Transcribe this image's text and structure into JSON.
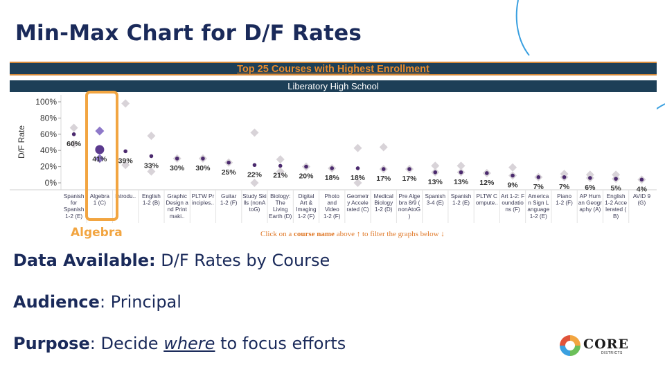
{
  "slide": {
    "title": "Min-Max Chart for D/F Rates",
    "highlight_label": "Algebra",
    "info": [
      {
        "label": "Data Available:",
        "text": " D/F Rates by Course",
        "underline": ""
      },
      {
        "label": "Audience",
        "text": ": Principal",
        "underline": ""
      },
      {
        "label": "Purpose",
        "text": ": Decide ",
        "underline": "where",
        "text_after": " to focus efforts"
      }
    ],
    "logo": {
      "name": "CORE",
      "sub": "DISTRICTS"
    }
  },
  "dashboard": {
    "banner_title": "Top 25 Courses with Highest Enrollment",
    "school": "Liberatory High School",
    "hint_prefix": "Click on a ",
    "hint_bold": "course name",
    "hint_suffix": " above ↑ to filter the graphs below ↓"
  },
  "colors": {
    "title": "#1a2a5a",
    "banner_bg": "#1d3f57",
    "banner_title": "#e88a2a",
    "highlight": "#f2a541",
    "dot": "#4b2a6e",
    "diamond_gray": "#d8d3d8",
    "diamond_purple": "#8e79c9"
  },
  "chart_data": {
    "type": "scatter",
    "ylabel": "D/F Rate",
    "yticks": [
      "0%",
      "20%",
      "40%",
      "60%",
      "80%",
      "100%"
    ],
    "ylim": [
      0,
      100
    ],
    "categories": [
      "Spanish for Spanish 1-2 (E)",
      "Algebra 1 (C)",
      "Introdu..",
      "English 1-2 (B)",
      "Graphic Design and Print maki..",
      "PLTW Principles..",
      "Guitar 1-2 (F)",
      "Study Skills (nonAtoG)",
      "Biology: The Living Earth (D)",
      "Digital Art & Imaging 1-2 (F)",
      "Photo and Video 1-2 (F)",
      "Geometry Accelerated (C)",
      "Medical Biology 1-2 (D)",
      "Pre Algebra 8/9 (nonAtoG)",
      "Spanish 3-4 (E)",
      "Spanish 1-2 (E)",
      "PLTW Compute..",
      "Art 1-2: Foundations (F)",
      "American Sign Language 1-2 (E)",
      "Piano 1-2 (F)",
      "AP Human Geography (A)",
      "English 1-2 Accelerated (B)",
      "AVID 9 (G)"
    ],
    "category_lines": [
      [
        "Spanish",
        "for",
        "Spanish",
        "1-2 (E)"
      ],
      [
        "Algebra",
        "1 (C)"
      ],
      [
        "Introdu.."
      ],
      [
        "English",
        "1-2 (B)"
      ],
      [
        "Graphic",
        "Design a",
        "nd Print",
        "maki.."
      ],
      [
        "PLTW Pr",
        "inciples.."
      ],
      [
        "Guitar",
        "1-2 (F)"
      ],
      [
        "Study Ski",
        "lls (nonA",
        "toG)"
      ],
      [
        "Biology:",
        "The",
        "Living",
        "Earth (D)"
      ],
      [
        "Digital",
        "Art &",
        "Imaging",
        "1-2 (F)"
      ],
      [
        "Photo",
        "and",
        "Video",
        "1-2 (F)"
      ],
      [
        "Geometr",
        "y Accele",
        "rated (C)"
      ],
      [
        "Medical",
        "Biology",
        "1-2 (D)"
      ],
      [
        "Pre Alge",
        "bra 8/9 (",
        "nonAtoG",
        ")"
      ],
      [
        "Spanish",
        "3-4 (E)"
      ],
      [
        "Spanish",
        "1-2 (E)"
      ],
      [
        "PLTW C",
        "ompute.."
      ],
      [
        "Art 1-2: F",
        "oundatio",
        "ns (F)"
      ],
      [
        "America",
        "n Sign L",
        "anguage",
        "1-2 (E)"
      ],
      [
        "Piano",
        "1-2 (F)"
      ],
      [
        "AP Hum",
        "an Geogr",
        "aphy (A)"
      ],
      [
        "English",
        "1-2 Acce",
        "lerated (",
        "B)"
      ],
      [
        "AVID 9",
        "(G)"
      ]
    ],
    "labels": [
      "60%",
      "41%",
      "39%",
      "33%",
      "30%",
      "30%",
      "25%",
      "22%",
      "21%",
      "20%",
      "18%",
      "18%",
      "17%",
      "17%",
      "13%",
      "13%",
      "12%",
      "9%",
      "7%",
      "7%",
      "6%",
      "5%",
      "4%"
    ],
    "values": [
      60,
      41,
      39,
      33,
      30,
      30,
      25,
      22,
      21,
      20,
      18,
      18,
      17,
      17,
      13,
      13,
      12,
      9,
      7,
      7,
      6,
      5,
      4
    ],
    "min": [
      48,
      30,
      22,
      14,
      30,
      30,
      25,
      0,
      14,
      20,
      18,
      0,
      17,
      17,
      13,
      13,
      12,
      9,
      7,
      7,
      6,
      5,
      4
    ],
    "max": [
      68,
      64,
      98,
      58,
      30,
      30,
      25,
      62,
      29,
      20,
      18,
      43,
      44,
      17,
      21,
      21,
      12,
      19,
      7,
      11,
      10,
      10,
      4
    ],
    "highlighted": [
      1
    ],
    "markers": {
      "value": "dot",
      "range": "diamond"
    }
  }
}
